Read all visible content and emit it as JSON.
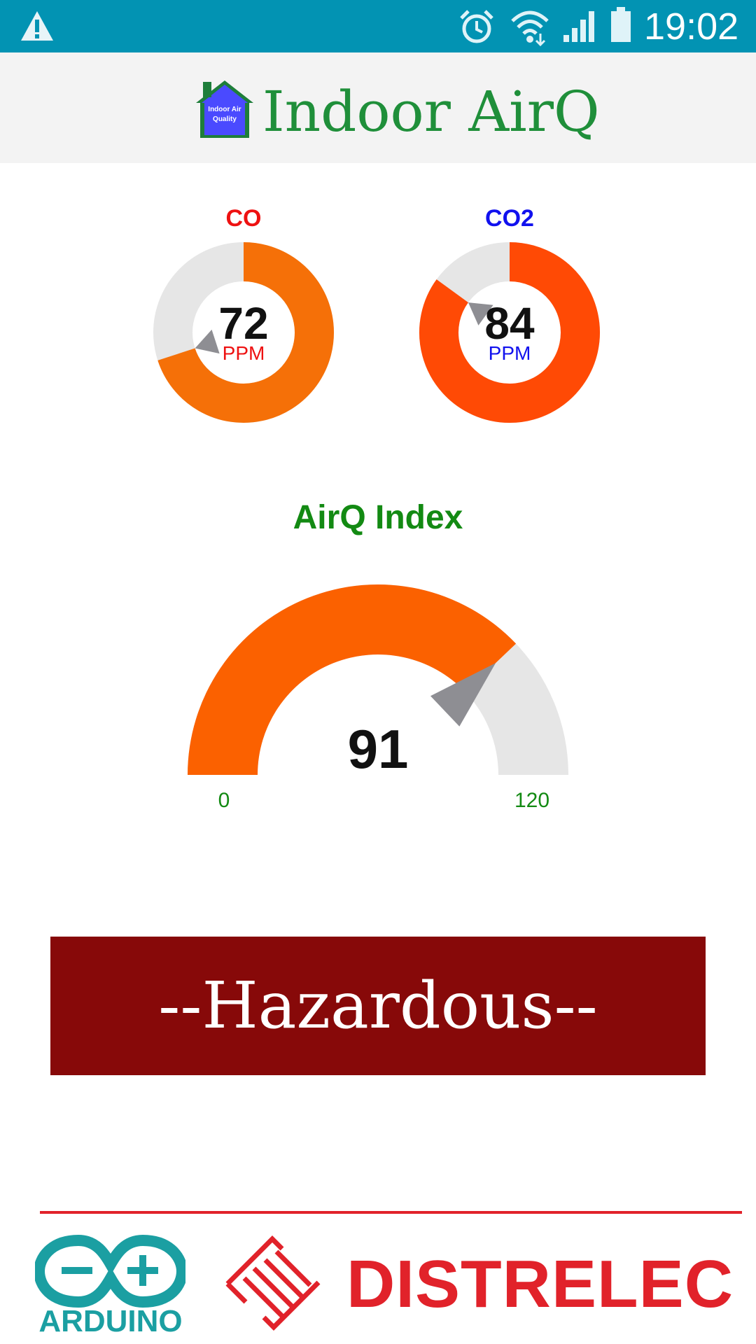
{
  "status_bar": {
    "time": "19:02",
    "icons": [
      "warning-icon",
      "alarm-icon",
      "wifi-icon",
      "signal-icon",
      "battery-icon"
    ]
  },
  "header": {
    "logo_text_line1": "Indoor Air",
    "logo_text_line2": "Quality",
    "title": "Indoor AirQ"
  },
  "gauges": {
    "co": {
      "label": "CO",
      "value": "72",
      "unit": "PPM",
      "level": 0.7,
      "color": "#f57008"
    },
    "co2": {
      "label": "CO2",
      "value": "84",
      "unit": "PPM",
      "level": 0.85,
      "color": "#ff4a05"
    }
  },
  "airq_index": {
    "title": "AirQ Index",
    "value": "91",
    "min": "0",
    "max": "120",
    "level": 0.758,
    "color": "#fb6100"
  },
  "status": {
    "text": "--Hazardous--",
    "color": "#870909"
  },
  "footer": {
    "arduino_text": "ARDUINO",
    "distrelec_text": "DISTRELEC"
  }
}
